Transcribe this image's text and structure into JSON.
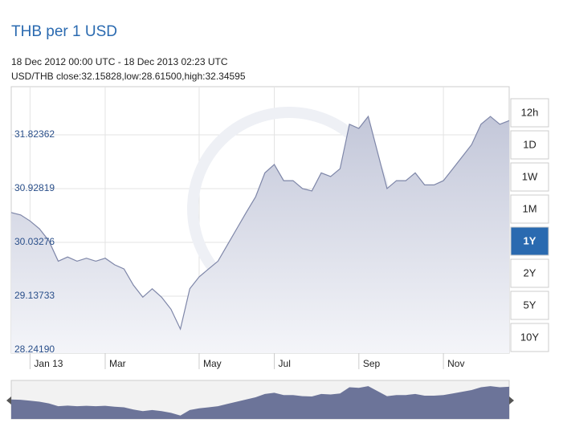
{
  "chart_data": {
    "type": "area",
    "title": "THB per 1 USD",
    "subtitle": "18 Dec 2012 00:00 UTC - 18 Dec 2013 02:23 UTC",
    "summary": "USD/THB close:32.15828,low:28.61500,high:32.34595",
    "categories": [
      null,
      null,
      "Jan 13",
      null,
      null,
      null,
      null,
      null,
      null,
      null,
      "Mar",
      null,
      null,
      null,
      null,
      null,
      null,
      null,
      null,
      null,
      "May",
      null,
      null,
      null,
      null,
      null,
      null,
      null,
      "Jul",
      null,
      null,
      null,
      null,
      null,
      null,
      null,
      null,
      "Sep",
      null,
      null,
      null,
      null,
      null,
      null,
      null,
      null,
      "Nov",
      null,
      null,
      null,
      null,
      null,
      null,
      null
    ],
    "values": [
      30.53,
      30.49,
      30.39,
      30.26,
      30.06,
      29.72,
      29.79,
      29.72,
      29.77,
      29.72,
      29.77,
      29.66,
      29.59,
      29.32,
      29.12,
      29.26,
      29.12,
      28.92,
      28.59,
      29.26,
      29.46,
      29.59,
      29.72,
      29.99,
      30.26,
      30.53,
      30.79,
      31.19,
      31.33,
      31.06,
      31.06,
      30.93,
      30.89,
      31.19,
      31.13,
      31.26,
      32.0,
      31.93,
      32.13,
      31.53,
      30.93,
      31.06,
      31.06,
      31.19,
      30.99,
      30.99,
      31.06,
      31.26,
      31.46,
      31.66,
      32.0,
      32.13,
      32.0,
      32.06
    ],
    "color": "#7e86a8",
    "ylim": [
      28.1884,
      32.6255
    ],
    "yticks": [
      {
        "value": 28.2419,
        "label": "28.24190"
      },
      29.13733,
      30.03276,
      30.92819,
      31.82362
    ],
    "grid": true,
    "range_buttons": [
      "12h",
      "1D",
      "1W",
      "1M",
      "1Y",
      "2Y",
      "5Y",
      "10Y"
    ],
    "selected_range": "1Y"
  }
}
